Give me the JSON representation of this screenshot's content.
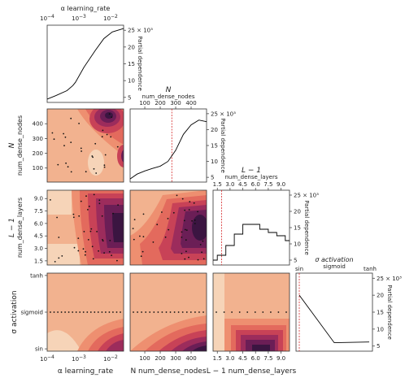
{
  "chart_data": [
    {
      "type": "line",
      "panel": "diag-learning-rate",
      "xlabel": "α learning_rate",
      "xscale": "log",
      "xticks": [
        "10^-4",
        "10^-3",
        "10^-2"
      ],
      "x": [
        0.0001,
        0.0002,
        0.0005,
        0.0008,
        0.001,
        0.002,
        0.005,
        0.01,
        0.02,
        0.05
      ],
      "y": [
        4500,
        5500,
        7000,
        8500,
        9500,
        14000,
        19000,
        22500,
        24500,
        25500
      ],
      "ylabel": "Partial dependence",
      "yticks": [
        "5",
        "10",
        "15",
        "20",
        "25 × 10³"
      ],
      "ylim": [
        3500,
        26500
      ]
    },
    {
      "type": "line",
      "panel": "diag-num-dense-nodes",
      "title": "N",
      "xlabel": "num_dense_nodes",
      "xticks": [
        "100",
        "200",
        "300",
        "400"
      ],
      "x": [
        5,
        50,
        100,
        150,
        200,
        250,
        300,
        350,
        400,
        450,
        500
      ],
      "y": [
        4500,
        6000,
        7000,
        7800,
        8500,
        10000,
        13500,
        18500,
        21500,
        23000,
        22500
      ],
      "vline": 275,
      "ylabel": "Partial dependence",
      "yticks": [
        "5",
        "10",
        "15",
        "20",
        "25 × 10³"
      ],
      "ylim": [
        3500,
        26500
      ]
    },
    {
      "type": "line",
      "step": true,
      "panel": "diag-num-dense-layers",
      "title": "L − 1",
      "xlabel": "num_dense_layers",
      "xticks": [
        "1.5",
        "3.0",
        "4.5",
        "6.0",
        "7.5",
        "9.0"
      ],
      "x": [
        1,
        2,
        3,
        4,
        5,
        6,
        7,
        8,
        9,
        10
      ],
      "y": [
        5000,
        6500,
        9500,
        13000,
        16000,
        16000,
        14500,
        13500,
        12500,
        11000
      ],
      "vline": 2,
      "ylabel": "Partial dependence",
      "yticks": [
        "5",
        "10",
        "15",
        "20",
        "25 × 10³"
      ],
      "ylim": [
        3500,
        26500
      ]
    },
    {
      "type": "line",
      "panel": "diag-activation",
      "title": "σ activation",
      "xlabel": "sigmoid",
      "categories": [
        "sin",
        "sigmoid",
        "tanh"
      ],
      "y": [
        20000,
        6000,
        6200
      ],
      "vline": "sin",
      "ylabel": "Partial dependence",
      "yticks": [
        "5",
        "10",
        "15",
        "20",
        "25 × 10³"
      ],
      "ylim": [
        3500,
        26500
      ]
    },
    {
      "type": "heatmap",
      "panel": "pair-nodes-vs-lr",
      "ylabel": "N num_dense_nodes",
      "yticks": [
        "100",
        "200",
        "300",
        "400"
      ],
      "description": "contour of partial dependence, dark minimum near high learning_rate and ~450 nodes"
    },
    {
      "type": "heatmap",
      "panel": "pair-layers-vs-lr",
      "ylabel": "L − 1 num_dense_layers",
      "yticks": [
        "1.5",
        "3.0",
        "4.5",
        "6.0",
        "7.5",
        "9.0"
      ]
    },
    {
      "type": "heatmap",
      "panel": "pair-layers-vs-nodes"
    },
    {
      "type": "heatmap",
      "panel": "pair-activation-vs-lr",
      "xlabel": "α learning_rate",
      "xticks": [
        "10^-4",
        "10^-3",
        "10^-2"
      ],
      "ylabel": "σ activation",
      "yticks": [
        "sin",
        "sigmoid",
        "tanh"
      ]
    },
    {
      "type": "heatmap",
      "panel": "pair-activation-vs-nodes",
      "xlabel": "N num_dense_nodes",
      "xticks": [
        "100",
        "200",
        "300",
        "400"
      ]
    },
    {
      "type": "heatmap",
      "panel": "pair-activation-vs-layers",
      "xlabel": "L − 1 num_dense_layers",
      "xticks": [
        "1.5",
        "3.0",
        "4.5",
        "6.0",
        "7.5",
        "9.0"
      ]
    }
  ],
  "colors": {
    "light": "#f6d4b8",
    "c1": "#f2b28f",
    "c2": "#ee8f70",
    "c3": "#e36a5d",
    "c4": "#c84257",
    "c5": "#9c2c5c",
    "c6": "#6b1e56",
    "c7": "#3b1541",
    "line": "#000000",
    "vline": "#d62728"
  }
}
